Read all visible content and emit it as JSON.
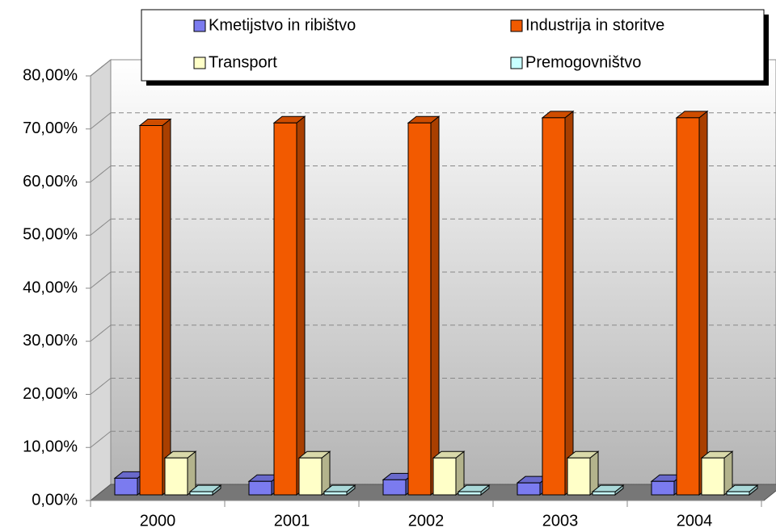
{
  "chart_data": {
    "type": "bar3d",
    "categories": [
      "2000",
      "2001",
      "2002",
      "2003",
      "2004"
    ],
    "series": [
      {
        "name": "Kmetijstvo in ribištvo",
        "color": "#7b7bef",
        "values": [
          3.2,
          2.6,
          2.9,
          2.3,
          2.6
        ]
      },
      {
        "name": "Industrija in storitve",
        "color": "#f25a00",
        "values": [
          71.0,
          71.5,
          71.5,
          72.5,
          72.5
        ]
      },
      {
        "name": "Transport",
        "color": "#ffffc8",
        "values": [
          7.1,
          7.1,
          7.1,
          7.1,
          7.1
        ]
      },
      {
        "name": "Premogovništvo",
        "color": "#c8ffff",
        "values": [
          0.6,
          0.6,
          0.6,
          0.6,
          0.6
        ]
      }
    ],
    "ylim": [
      0,
      80
    ],
    "yticks": [
      {
        "value": 0,
        "label": "0,00%"
      },
      {
        "value": 10,
        "label": "10,00%"
      },
      {
        "value": 20,
        "label": "20,00%"
      },
      {
        "value": 30,
        "label": "30,00%"
      },
      {
        "value": 40,
        "label": "40,00%"
      },
      {
        "value": 50,
        "label": "50,00%"
      },
      {
        "value": 60,
        "label": "60,00%"
      },
      {
        "value": 70,
        "label": "70,00%"
      },
      {
        "value": 80,
        "label": "80,00%"
      }
    ],
    "grid": true
  }
}
